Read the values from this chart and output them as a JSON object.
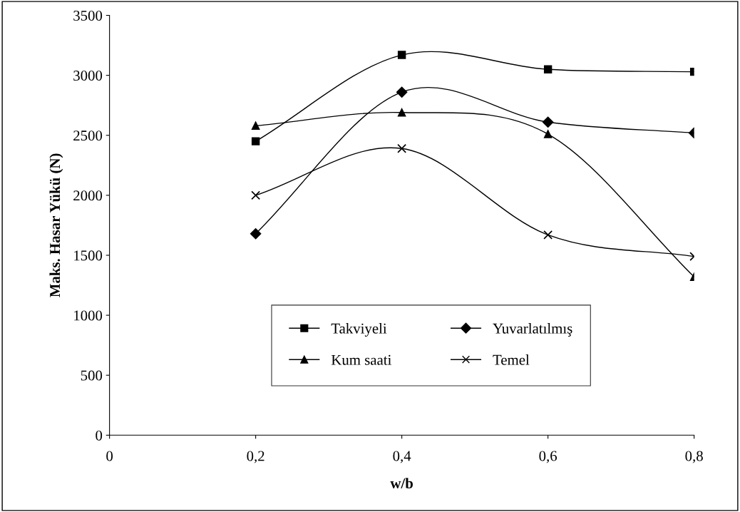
{
  "chart_data": {
    "type": "line",
    "xlabel": "w/b",
    "ylabel": "Maks. Hasar Yükü (N)",
    "x": [
      0.2,
      0.4,
      0.6,
      0.8
    ],
    "series": [
      {
        "name": "Takviyeli",
        "color": "#000000",
        "marker": "square",
        "values": [
          2450,
          3170,
          3050,
          3030
        ]
      },
      {
        "name": "Kum saati",
        "color": "#000000",
        "marker": "triangle",
        "values": [
          2580,
          2690,
          2510,
          1320
        ]
      },
      {
        "name": "Yuvarlatılmış",
        "color": "#000000",
        "marker": "diamond",
        "values": [
          1680,
          2860,
          2610,
          2520
        ]
      },
      {
        "name": "Temel",
        "color": "#000000",
        "marker": "cross",
        "values": [
          2000,
          2390,
          1670,
          1490
        ]
      }
    ],
    "xlim": [
      0,
      0.8
    ],
    "ylim": [
      0,
      3500
    ],
    "xticks": [
      {
        "value": 0,
        "label": "0"
      },
      {
        "value": 0.2,
        "label": "0,2"
      },
      {
        "value": 0.4,
        "label": "0,4"
      },
      {
        "value": 0.6,
        "label": "0,6"
      },
      {
        "value": 0.8,
        "label": "0,8"
      }
    ],
    "yticks": [
      0,
      500,
      1000,
      1500,
      2000,
      2500,
      3000,
      3500
    ],
    "grid": false,
    "legend": "bottom",
    "line_style": "solid"
  }
}
